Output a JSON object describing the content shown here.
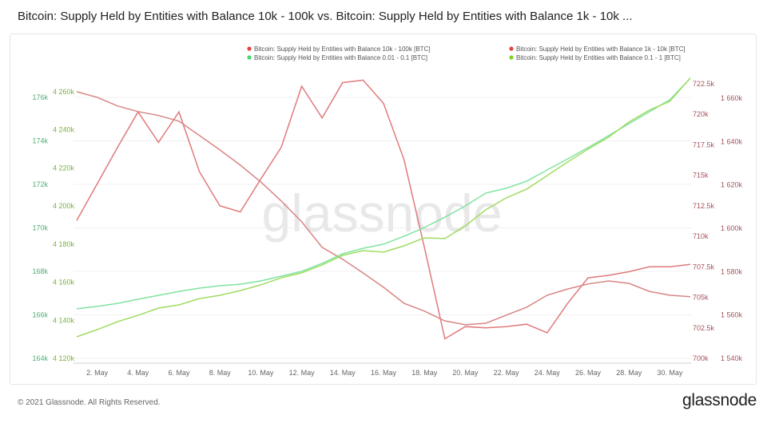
{
  "chart_data": {
    "type": "line",
    "title": "Bitcoin: Supply Held by Entities with Balance 10k - 100k vs. Bitcoin: Supply Held by Entities with Balance 1k - 10k ...",
    "watermark": "glassnode",
    "legend_position": "top-right",
    "grid": true,
    "x": [
      "1. May",
      "2. May",
      "3. May",
      "4. May",
      "5. May",
      "6. May",
      "7. May",
      "8. May",
      "9. May",
      "10. May",
      "11. May",
      "12. May",
      "13. May",
      "14. May",
      "15. May",
      "16. May",
      "17. May",
      "18. May",
      "19. May",
      "20. May",
      "21. May",
      "22. May",
      "23. May",
      "24. May",
      "25. May",
      "26. May",
      "27. May",
      "28. May",
      "29. May",
      "30. May",
      "31. May"
    ],
    "xticks": [
      "2. May",
      "4. May",
      "6. May",
      "8. May",
      "10. May",
      "12. May",
      "14. May",
      "16. May",
      "18. May",
      "20. May",
      "22. May",
      "24. May",
      "26. May",
      "28. May",
      "30. May"
    ],
    "axes": {
      "left_outer": {
        "ticks": [
          "164k",
          "166k",
          "168k",
          "170k",
          "172k",
          "174k",
          "176k"
        ],
        "range": [
          164,
          176
        ],
        "color": "#4fae74"
      },
      "left_inner": {
        "ticks": [
          "4 120k",
          "4 140k",
          "4 160k",
          "4 180k",
          "4 200k",
          "4 220k",
          "4 240k",
          "4 260k"
        ],
        "range": [
          4120,
          4260
        ],
        "color": "#79b23c"
      },
      "right_inner": {
        "ticks": [
          "700k",
          "702.5k",
          "705k",
          "707.5k",
          "710k",
          "712.5k",
          "715k",
          "717.5k",
          "720k",
          "722.5k"
        ],
        "range": [
          700,
          722.5
        ],
        "color": "#a5525c"
      },
      "right_outer": {
        "ticks": [
          "1 540k",
          "1 560k",
          "1 580k",
          "1 600k",
          "1 620k",
          "1 640k",
          "1 660k"
        ],
        "range": [
          1540,
          1660
        ],
        "color": "#a5525c"
      }
    },
    "series": [
      {
        "name": "Bitcoin: Supply Held by Entities with Balance 10k - 100k [BTC]",
        "axis": "right_inner",
        "color": "#e07a7a",
        "dot": "#e5403f",
        "values": [
          711.3,
          714.3,
          717.3,
          720.2,
          717.7,
          720.2,
          715.3,
          712.5,
          712.0,
          714.7,
          717.3,
          722.3,
          719.7,
          722.6,
          722.8,
          720.9,
          716.3,
          709.1,
          701.6,
          702.6,
          702.5,
          702.6,
          702.8,
          702.1,
          704.5,
          706.6,
          706.8,
          707.1,
          707.5,
          707.5,
          707.7
        ]
      },
      {
        "name": "Bitcoin: Supply Held by Entities with Balance 1k - 10k [BTC]",
        "axis": "right_outer",
        "color": "#d98585",
        "dot": "#e5403f",
        "values": [
          1663.0,
          1660.4,
          1656.4,
          1653.8,
          1652.0,
          1649.4,
          1642.8,
          1636.1,
          1629.1,
          1621.4,
          1612.6,
          1603.0,
          1591.2,
          1585.7,
          1579.4,
          1572.8,
          1565.4,
          1561.8,
          1557.3,
          1555.5,
          1556.2,
          1559.9,
          1563.6,
          1569.1,
          1572.0,
          1574.3,
          1575.7,
          1574.6,
          1570.9,
          1569.1,
          1568.4
        ]
      },
      {
        "name": "Bitcoin: Supply Held by Entities with Balance 0.01 - 0.1 [BTC]",
        "axis": "left_outer",
        "color": "#7fe3a0",
        "dot": "#3fdc70",
        "values": [
          166.28,
          166.39,
          166.53,
          166.72,
          166.9,
          167.08,
          167.23,
          167.34,
          167.41,
          167.56,
          167.78,
          168.0,
          168.37,
          168.81,
          169.06,
          169.25,
          169.61,
          170.02,
          170.49,
          171.01,
          171.6,
          171.82,
          172.15,
          172.66,
          173.17,
          173.69,
          174.24,
          174.79,
          175.34,
          175.89,
          176.88
        ]
      },
      {
        "name": "Bitcoin: Supply Held by Entities with Balance 0.1 - 1 [BTC]",
        "axis": "left_inner",
        "color": "#9fdc62",
        "dot": "#7ed321",
        "values": [
          4131.3,
          4135.1,
          4139.3,
          4142.6,
          4146.4,
          4148.1,
          4151.4,
          4153.1,
          4155.6,
          4158.6,
          4162.3,
          4164.9,
          4169.1,
          4174.1,
          4176.6,
          4175.8,
          4179.1,
          4183.3,
          4182.9,
          4189.6,
          4198.0,
          4204.3,
          4208.9,
          4216.0,
          4223.1,
          4229.9,
          4236.1,
          4244.1,
          4250.4,
          4255.0,
          4267.2
        ]
      }
    ]
  },
  "footer": {
    "copyright": "© 2021 Glassnode. All Rights Reserved.",
    "brand": "glassnode"
  }
}
